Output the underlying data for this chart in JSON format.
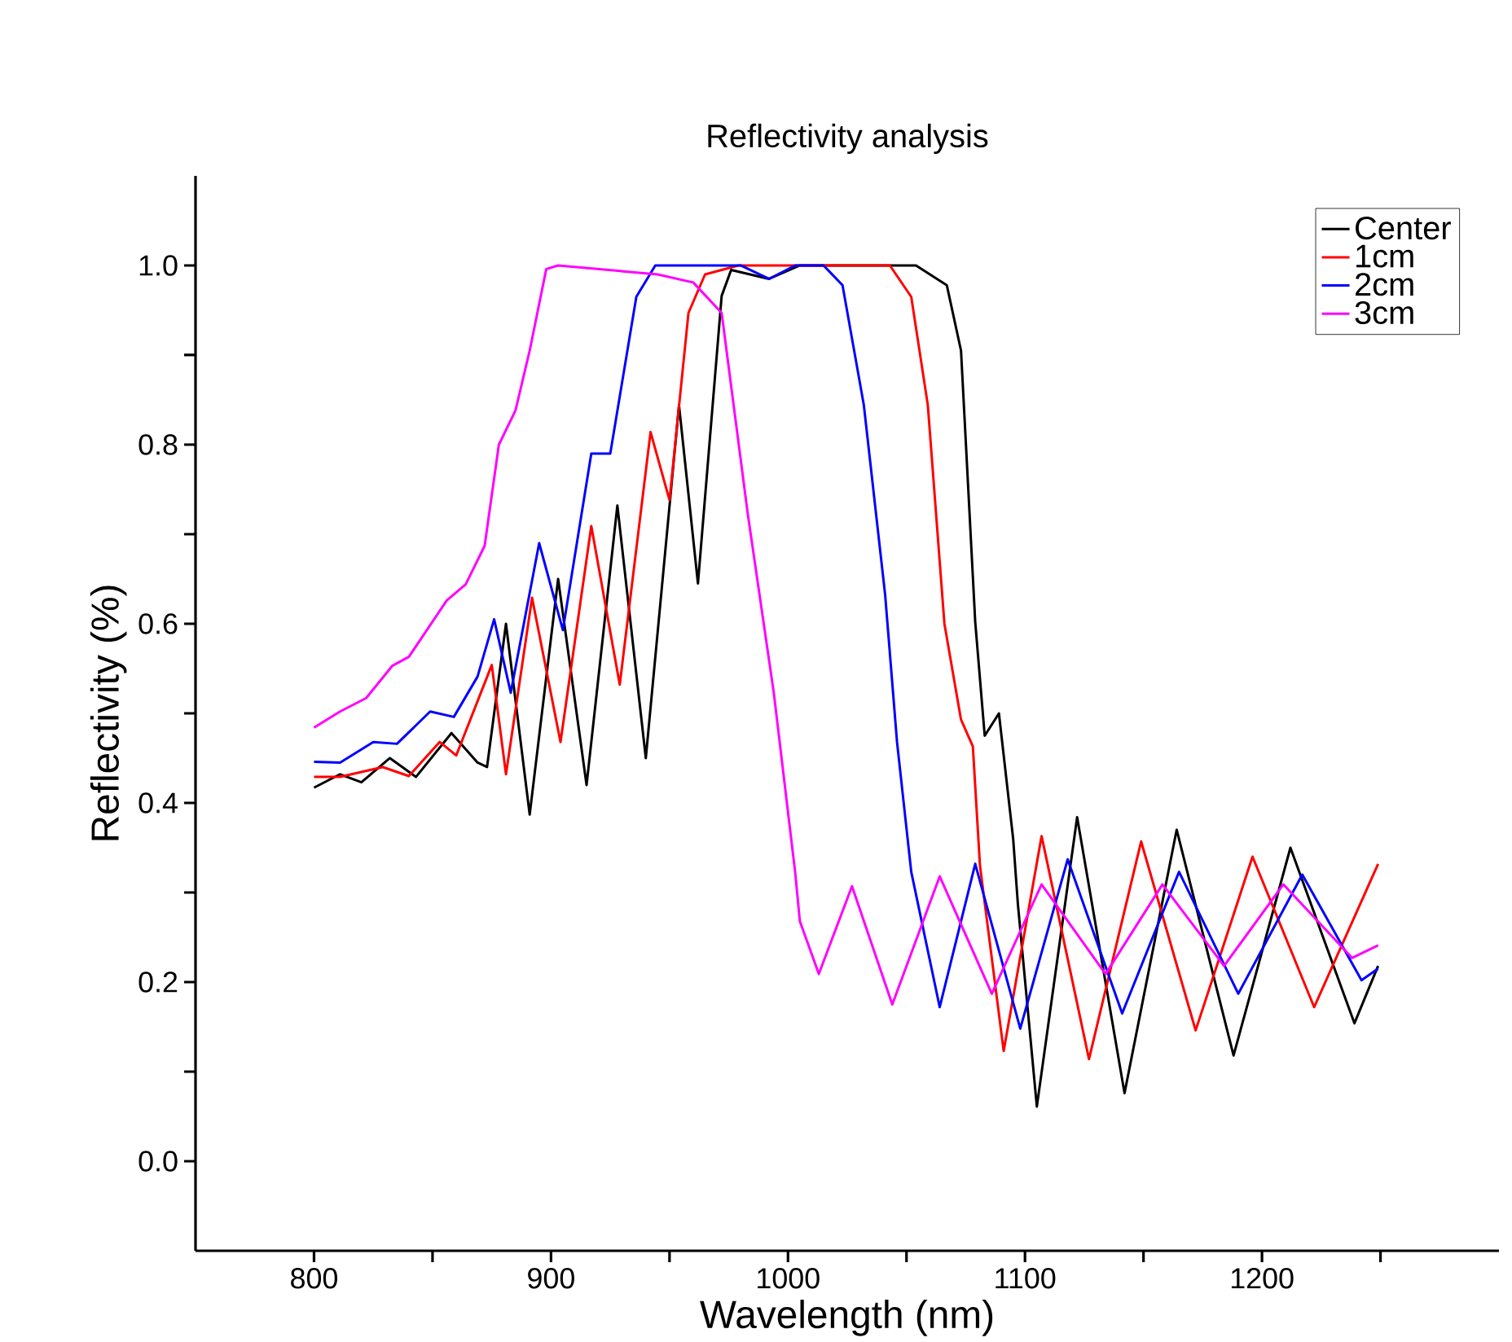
{
  "chart_data": {
    "type": "line",
    "title": "Reflectivity analysis",
    "xlabel": "Wavelength (nm)",
    "ylabel": "Reflectivity (%)",
    "xlim": [
      750,
      1300
    ],
    "ylim": [
      -0.1,
      1.1
    ],
    "xticks": [
      800,
      {
        "value": 850,
        "label": null
      },
      900,
      {
        "value": 950,
        "label": null
      },
      1000,
      {
        "value": 1050,
        "label": null
      },
      1100,
      {
        "value": 1150,
        "label": null
      },
      1200,
      {
        "value": 1250,
        "label": null
      }
    ],
    "yticks": [
      {
        "value": 0,
        "label": "0.0"
      },
      {
        "value": 0.1,
        "label": null
      },
      {
        "value": 0.2,
        "label": "0.2"
      },
      {
        "value": 0.3,
        "label": null
      },
      {
        "value": 0.4,
        "label": "0.4"
      },
      {
        "value": 0.5,
        "label": null
      },
      {
        "value": 0.6,
        "label": "0.6"
      },
      {
        "value": 0.7,
        "label": null
      },
      {
        "value": 0.8,
        "label": "0.8"
      },
      {
        "value": 0.9,
        "label": null
      },
      {
        "value": 1.0,
        "label": "1.0"
      }
    ],
    "grid": false,
    "legend": "top right",
    "marker": "none",
    "line_style": "solid",
    "series": [
      {
        "name": "Center",
        "color": "#000000",
        "x": [
          800,
          811,
          820,
          832,
          843,
          858,
          869,
          873,
          875,
          881,
          891,
          903,
          915,
          928,
          940,
          954,
          962,
          972,
          976,
          992,
          1005,
          1054,
          1067,
          1073,
          1079,
          1083,
          1089,
          1095,
          1097,
          1105,
          1122,
          1142,
          1164,
          1188,
          1212,
          1239,
          1249
        ],
        "values": [
          0.417,
          0.432,
          0.423,
          0.45,
          0.429,
          0.478,
          0.445,
          0.44,
          0.48,
          0.6,
          0.387,
          0.65,
          0.42,
          0.732,
          0.45,
          0.844,
          0.645,
          0.966,
          0.995,
          0.985,
          1.0,
          1.0,
          0.978,
          0.905,
          0.602,
          0.475,
          0.5,
          0.36,
          0.287,
          0.061,
          0.384,
          0.076,
          0.37,
          0.118,
          0.35,
          0.154,
          0.218
        ]
      },
      {
        "name": "1cm",
        "color": "#ff0000",
        "x": [
          800,
          811,
          829,
          840,
          853,
          860,
          875,
          881,
          892,
          904,
          917,
          929,
          942,
          950,
          958,
          965,
          979,
          1043,
          1052,
          1059,
          1066,
          1073,
          1078,
          1081,
          1091,
          1107,
          1127,
          1149,
          1172,
          1196,
          1222,
          1249
        ],
        "values": [
          0.429,
          0.429,
          0.44,
          0.43,
          0.468,
          0.453,
          0.554,
          0.432,
          0.629,
          0.468,
          0.709,
          0.532,
          0.814,
          0.738,
          0.947,
          0.99,
          1.0,
          1.0,
          0.965,
          0.844,
          0.6,
          0.493,
          0.463,
          0.33,
          0.123,
          0.363,
          0.114,
          0.357,
          0.146,
          0.34,
          0.172,
          0.332
        ]
      },
      {
        "name": "2cm",
        "color": "#0000ff",
        "x": [
          800,
          811,
          825,
          835,
          849,
          859,
          869,
          876,
          883,
          895,
          905,
          917,
          925,
          936,
          944,
          980,
          992,
          1003,
          1015,
          1023,
          1032,
          1041,
          1046,
          1052,
          1064,
          1079,
          1098,
          1118,
          1141,
          1165,
          1190,
          1217,
          1242,
          1249
        ],
        "values": [
          0.446,
          0.445,
          0.468,
          0.466,
          0.502,
          0.496,
          0.541,
          0.605,
          0.523,
          0.69,
          0.593,
          0.79,
          0.79,
          0.965,
          1.0,
          1.0,
          0.985,
          1.0,
          1.0,
          0.978,
          0.844,
          0.632,
          0.468,
          0.323,
          0.172,
          0.332,
          0.148,
          0.337,
          0.165,
          0.323,
          0.187,
          0.32,
          0.202,
          0.215
        ]
      },
      {
        "name": "3cm",
        "color": "#ff00ff",
        "x": [
          800,
          811,
          822,
          833,
          840,
          856,
          864,
          872,
          878,
          885,
          891,
          898,
          903,
          945,
          960,
          972,
          983,
          994,
          1003,
          1005,
          1013,
          1027,
          1044,
          1064,
          1086,
          1107,
          1134,
          1158,
          1184,
          1209,
          1238,
          1249
        ],
        "values": [
          0.484,
          0.502,
          0.517,
          0.553,
          0.563,
          0.626,
          0.644,
          0.687,
          0.8,
          0.838,
          0.905,
          0.996,
          1.0,
          0.99,
          0.981,
          0.947,
          0.723,
          0.523,
          0.323,
          0.268,
          0.209,
          0.307,
          0.175,
          0.318,
          0.187,
          0.309,
          0.209,
          0.309,
          0.218,
          0.309,
          0.227,
          0.241
        ]
      }
    ]
  }
}
